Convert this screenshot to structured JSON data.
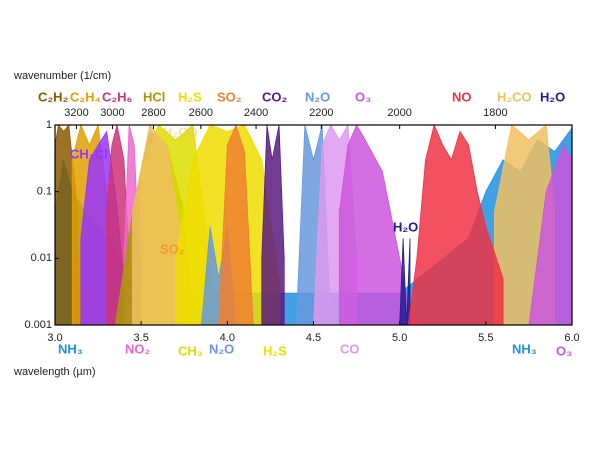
{
  "chart_data": {
    "type": "area",
    "xlabel": "wavelength (µm)",
    "top_xlabel": "wavenumber (1/cm)",
    "xlim": [
      3.0,
      6.0
    ],
    "xticks": [
      {
        "value": 3.0,
        "label": "3.0"
      },
      3.5,
      {
        "value": 4.0,
        "label": "4.0"
      },
      4.5,
      {
        "value": 5.0,
        "label": "5.0"
      },
      5.5,
      {
        "value": 6.0,
        "label": "6.0"
      }
    ],
    "top_xticks": [
      3200,
      3000,
      2800,
      2600,
      2400,
      2200,
      2000,
      1800
    ],
    "ylim": [
      0.001,
      1
    ],
    "yticks": [
      1,
      0.1,
      0.01,
      0.001
    ],
    "log_y": true,
    "series": [
      {
        "name": "NH₃",
        "color": "#2090e0",
        "x": [
          3.0,
          3.05,
          3.1,
          3.2,
          3.3,
          3.4,
          3.5,
          4.0,
          4.5,
          5.0,
          5.4,
          5.5,
          5.6,
          5.7,
          5.8,
          5.9,
          6.0
        ],
        "values": [
          0.05,
          0.3,
          0.1,
          0.04,
          0.02,
          0.008,
          0.004,
          0.003,
          0.003,
          0.003,
          0.02,
          0.1,
          0.3,
          0.2,
          0.6,
          0.4,
          0.9
        ]
      },
      {
        "name": "C₂H₂",
        "color": "#8b5a00",
        "x": [
          3.0,
          3.02,
          3.05,
          3.08,
          3.12,
          3.15
        ],
        "values": [
          0.5,
          1,
          0.8,
          1,
          0.1,
          0.001
        ]
      },
      {
        "name": "C₂H₄",
        "color": "#e0a000",
        "x": [
          3.1,
          3.15,
          3.2,
          3.25,
          3.3,
          3.35
        ],
        "values": [
          0.3,
          1,
          0.5,
          1,
          0.1,
          0.001
        ]
      },
      {
        "name": "CH₃Cl",
        "color": "#9933ff",
        "x": [
          3.15,
          3.2,
          3.25,
          3.3,
          3.35,
          3.4
        ],
        "values": [
          0.02,
          0.3,
          0.5,
          0.8,
          0.1,
          0.005
        ]
      },
      {
        "name": "C₂H₆",
        "color": "#cc3377",
        "x": [
          3.3,
          3.33,
          3.36,
          3.4,
          3.45
        ],
        "values": [
          0.05,
          0.5,
          1,
          0.3,
          0.001
        ]
      },
      {
        "name": "NO₂",
        "color": "#ee66cc",
        "x": [
          3.4,
          3.43,
          3.46,
          3.5
        ],
        "values": [
          0.01,
          1,
          0.5,
          0.002
        ]
      },
      {
        "name": "HCl",
        "color": "#aa9900",
        "x": [
          3.35,
          3.45,
          3.55,
          3.65,
          3.75,
          3.8
        ],
        "values": [
          0.001,
          0.05,
          0.8,
          0.5,
          0.05,
          0.001
        ]
      },
      {
        "name": "CH₃",
        "color": "#dddd00",
        "x": [
          3.5,
          3.6,
          3.7,
          3.8,
          3.9
        ],
        "values": [
          0.2,
          1,
          0.6,
          1,
          0.01
        ]
      },
      {
        "name": "H₂CO",
        "color": "#f0c060",
        "x": [
          3.45,
          3.55,
          3.65,
          3.75,
          null,
          5.55,
          5.65,
          5.75,
          5.85,
          5.9
        ],
        "values": [
          0.05,
          1,
          0.5,
          0.01,
          null,
          0.05,
          1,
          0.6,
          1,
          0.05
        ]
      },
      {
        "name": "H₂S",
        "color": "#f0dd00",
        "x": [
          3.7,
          3.8,
          3.9,
          4.0,
          4.1,
          4.2,
          4.3
        ],
        "values": [
          0.01,
          0.3,
          1,
          0.8,
          1,
          0.3,
          0.005
        ]
      },
      {
        "name": "N₂O",
        "color": "#6699dd",
        "x": [
          3.85,
          3.9,
          3.95,
          4.0,
          4.05,
          null,
          4.4,
          4.45,
          4.5,
          4.55,
          4.6
        ],
        "values": [
          0.001,
          0.03,
          0.005,
          0.03,
          0.001,
          null,
          0.001,
          1,
          0.3,
          1,
          0.001
        ]
      },
      {
        "name": "SO₂",
        "color": "#f08030",
        "x": [
          3.95,
          4.0,
          4.05,
          4.1,
          4.15
        ],
        "values": [
          0.001,
          0.5,
          1,
          0.4,
          0.001
        ]
      },
      {
        "name": "CO₂",
        "color": "#5a1a80",
        "x": [
          4.2,
          4.23,
          4.26,
          4.3,
          4.33
        ],
        "values": [
          0.01,
          1,
          0.3,
          1,
          0.01
        ]
      },
      {
        "name": "CO",
        "color": "#dd99ee",
        "x": [
          4.5,
          4.55,
          4.6,
          4.65,
          4.7,
          4.75
        ],
        "values": [
          0.001,
          0.5,
          1,
          0.6,
          1,
          0.01
        ]
      },
      {
        "name": "O₃",
        "color": "#cc55dd",
        "x": [
          4.65,
          4.7,
          4.75,
          4.8,
          4.9,
          5.0,
          5.05,
          5.1,
          null,
          5.75,
          5.85,
          5.95,
          6.0
        ],
        "values": [
          0.05,
          0.5,
          1,
          0.6,
          0.2,
          0.01,
          0.002,
          0.001,
          null,
          0.001,
          0.1,
          0.5,
          0.3
        ]
      },
      {
        "name": "H₂O",
        "color": "#202090",
        "x": [
          5.0,
          5.02,
          5.04,
          5.06
        ],
        "values": [
          0.001,
          0.02,
          0.001,
          0.02
        ]
      },
      {
        "name": "NO",
        "color": "#ee3344",
        "x": [
          5.05,
          5.1,
          5.15,
          5.2,
          5.25,
          5.3,
          5.35,
          5.4,
          5.45,
          5.5,
          5.6
        ],
        "values": [
          0.001,
          0.01,
          0.3,
          1,
          0.5,
          0.3,
          0.8,
          0.5,
          0.1,
          0.03,
          0.005
        ]
      }
    ]
  }
}
